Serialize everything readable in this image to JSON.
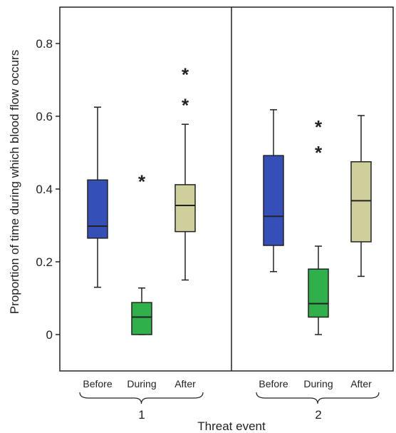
{
  "chart_data": {
    "type": "boxplot",
    "ylabel": "Proportion of time during which blood flow occurs",
    "xlabel": "Threat event",
    "ylim": [
      -0.1,
      0.9
    ],
    "yticks": [
      0,
      0.2,
      0.4,
      0.6,
      0.8
    ],
    "ytick_labels": [
      "0",
      "0.2",
      "0.4",
      "0.6",
      "0.8"
    ],
    "categories": [
      "Before",
      "During",
      "After"
    ],
    "groups": [
      {
        "label": "1",
        "boxes": [
          {
            "category": "Before",
            "color": "#3450b8",
            "whisker_low": 0.13,
            "q1": 0.265,
            "median": 0.298,
            "q3": 0.425,
            "whisker_high": 0.625,
            "outliers": []
          },
          {
            "category": "During",
            "color": "#2fb04a",
            "whisker_low": 0.0,
            "q1": 0.0,
            "median": 0.048,
            "q3": 0.088,
            "whisker_high": 0.128,
            "outliers": [
              0.43
            ]
          },
          {
            "category": "After",
            "color": "#cfcf9c",
            "whisker_low": 0.15,
            "q1": 0.283,
            "median": 0.355,
            "q3": 0.412,
            "whisker_high": 0.578,
            "outliers": [
              0.64,
              0.725
            ]
          }
        ]
      },
      {
        "label": "2",
        "boxes": [
          {
            "category": "Before",
            "color": "#3450b8",
            "whisker_low": 0.173,
            "q1": 0.245,
            "median": 0.325,
            "q3": 0.492,
            "whisker_high": 0.618,
            "outliers": []
          },
          {
            "category": "During",
            "color": "#2fb04a",
            "whisker_low": 0.0,
            "q1": 0.048,
            "median": 0.085,
            "q3": 0.18,
            "whisker_high": 0.243,
            "outliers": [
              0.51,
              0.58
            ]
          },
          {
            "category": "After",
            "color": "#cfcf9c",
            "whisker_low": 0.16,
            "q1": 0.255,
            "median": 0.368,
            "q3": 0.475,
            "whisker_high": 0.602,
            "outliers": []
          }
        ]
      }
    ],
    "grid": false,
    "legend": "none"
  }
}
